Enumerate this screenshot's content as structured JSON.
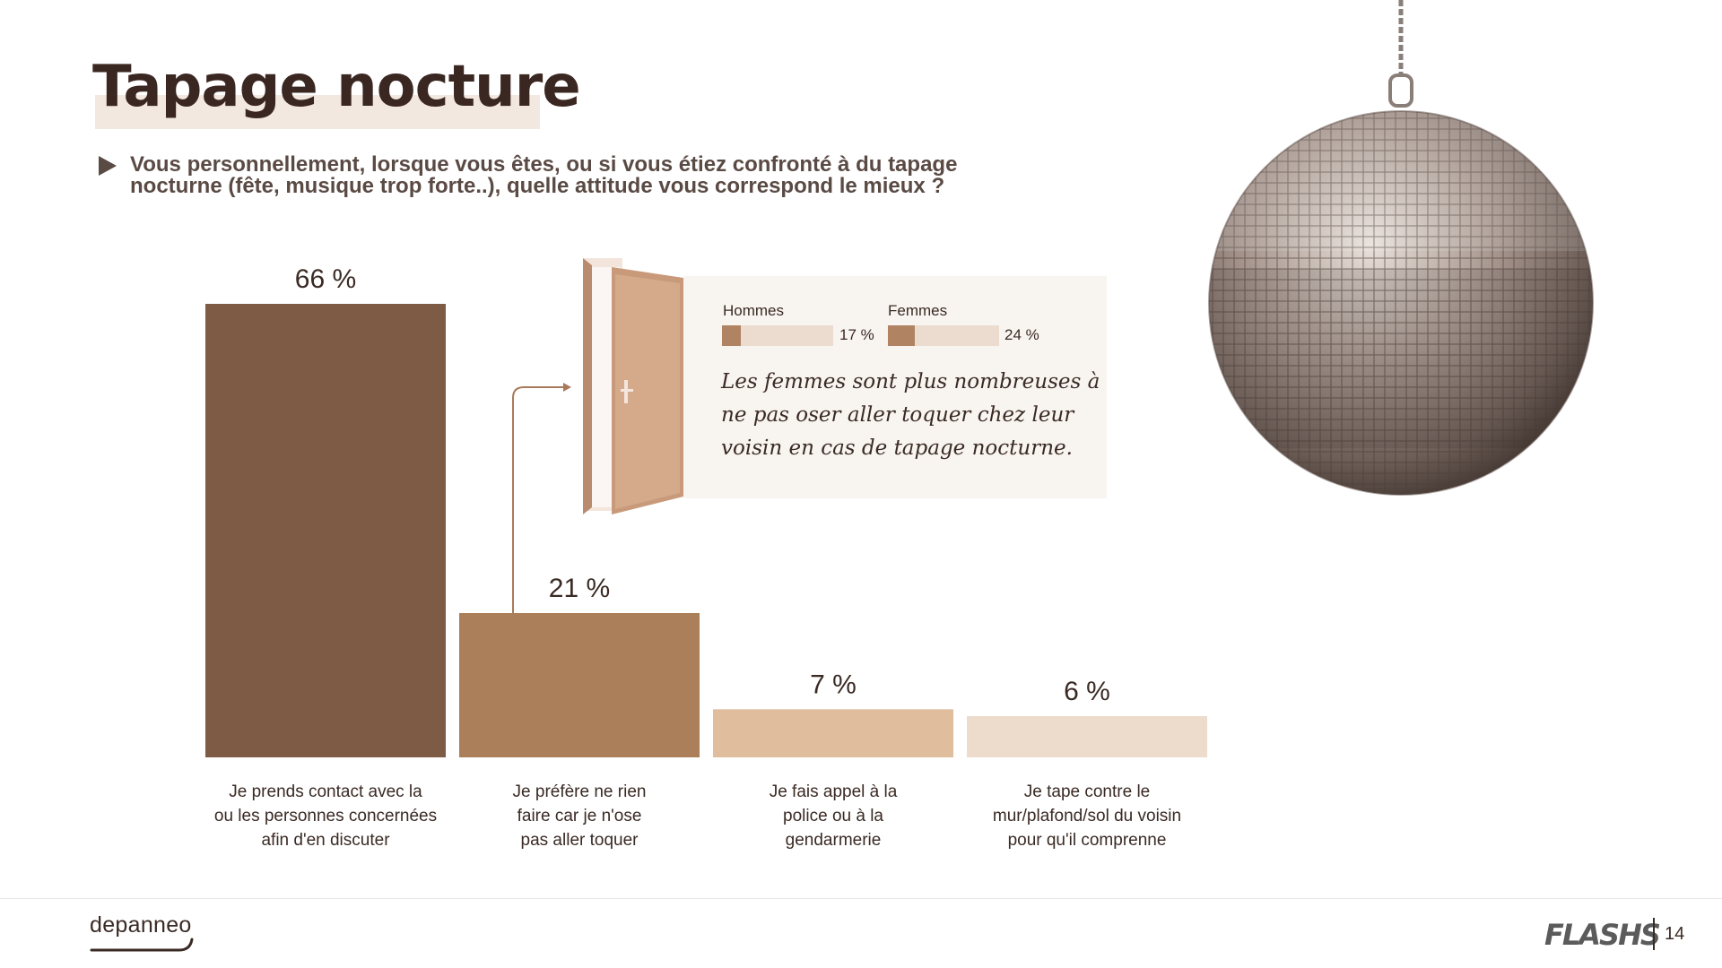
{
  "header": {
    "title": "Tapage nocture",
    "question": "Vous personnellement, lorsque vous êtes, ou si vous étiez confronté à du tapage nocturne (fête, musique trop forte..), quelle attitude vous correspond le mieux ?"
  },
  "chart_data": {
    "type": "bar",
    "title": "",
    "xlabel": "",
    "ylabel": "",
    "ylim": [
      0,
      66
    ],
    "grid": false,
    "categories": [
      [
        "Je prends contact avec la",
        "ou les personnes concernées",
        "afin d'en discuter"
      ],
      [
        "Je préfère ne rien",
        "faire car je n'ose",
        "pas aller toquer"
      ],
      [
        "Je fais appel à la",
        "police ou à la",
        "gendarmerie"
      ],
      [
        "Je tape contre le",
        "mur/plafond/sol du voisin",
        "pour qu'il comprenne"
      ]
    ],
    "values": [
      66,
      21,
      7,
      6
    ],
    "value_labels": [
      "66 %",
      "21 %",
      "7 %",
      "6 %"
    ],
    "colors": [
      "#7d5b45",
      "#ab7f59",
      "#dfbd9d",
      "#eddccc"
    ]
  },
  "callout": {
    "legend": [
      {
        "label": "Hommes",
        "value": 17,
        "value_label": "17 %"
      },
      {
        "label": "Femmes",
        "value": 24,
        "value_label": "24 %"
      }
    ],
    "text": "Les femmes sont plus nombreuses à ne pas oser aller toquer chez leur voisin en cas de tapage nocturne."
  },
  "footer": {
    "logo": "depanneo",
    "brand": "FLASHS",
    "page": "14"
  }
}
